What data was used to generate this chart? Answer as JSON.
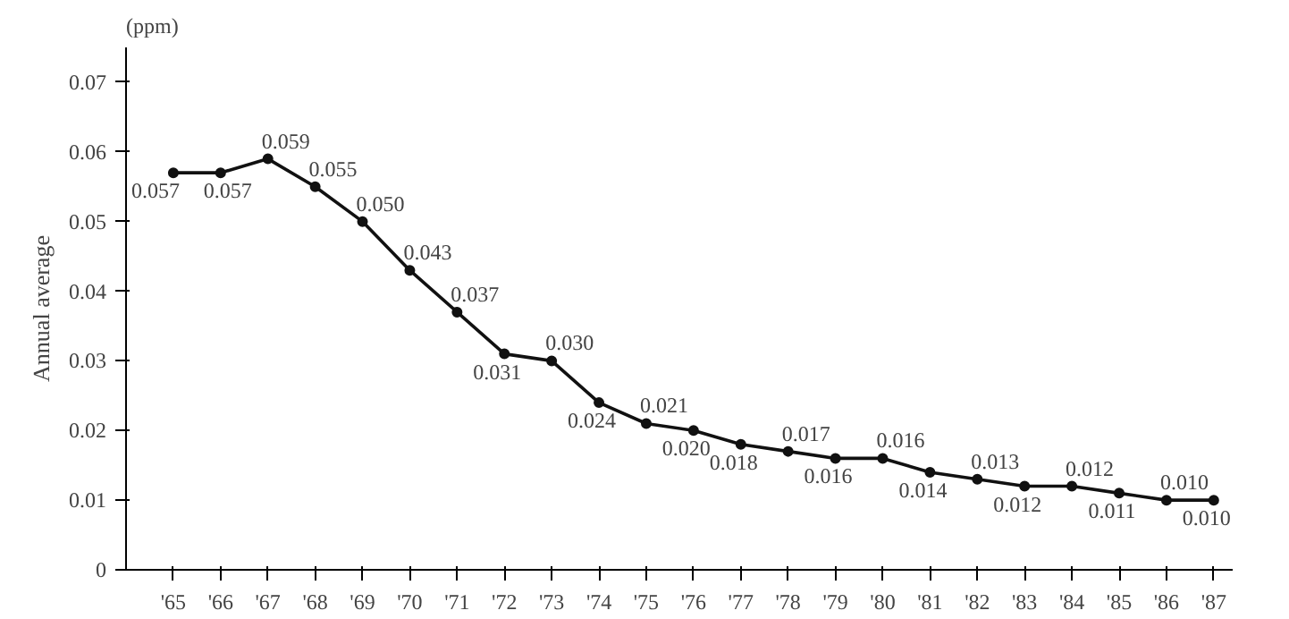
{
  "chart_data": {
    "type": "line",
    "ylabel": "Annual average",
    "annotations": [
      "(ppm)"
    ],
    "categories": [
      "'65",
      "'66",
      "'67",
      "'68",
      "'69",
      "'70",
      "'71",
      "'72",
      "'73",
      "'74",
      "'75",
      "'76",
      "'77",
      "'78",
      "'79",
      "'80",
      "'81",
      "'82",
      "'83",
      "'84",
      "'85",
      "'86",
      "'87"
    ],
    "series": [
      {
        "color": "#111111",
        "values": [
          0.057,
          0.057,
          0.059,
          0.055,
          0.05,
          0.043,
          0.037,
          0.031,
          0.03,
          0.024,
          0.021,
          0.02,
          0.018,
          0.017,
          0.016,
          0.016,
          0.014,
          0.013,
          0.012,
          0.012,
          0.011,
          0.01,
          0.01
        ]
      }
    ],
    "ylim": [
      0,
      0.075
    ],
    "yticks": [
      0,
      0.01,
      0.02,
      0.03,
      0.04,
      0.05,
      0.06,
      0.07
    ],
    "value_labels": [
      "0.057",
      "0.057",
      "0.059",
      "0.055",
      "0.050",
      "0.043",
      "0.037",
      "0.031",
      "0.030",
      "0.024",
      "0.021",
      "0.020",
      "0.018",
      "0.017",
      "0.016",
      "0.016",
      "0.014",
      "0.013",
      "0.012",
      "0.012",
      "0.011",
      "0.010",
      "0.010"
    ],
    "marker": "circle",
    "line_style": "solid"
  }
}
